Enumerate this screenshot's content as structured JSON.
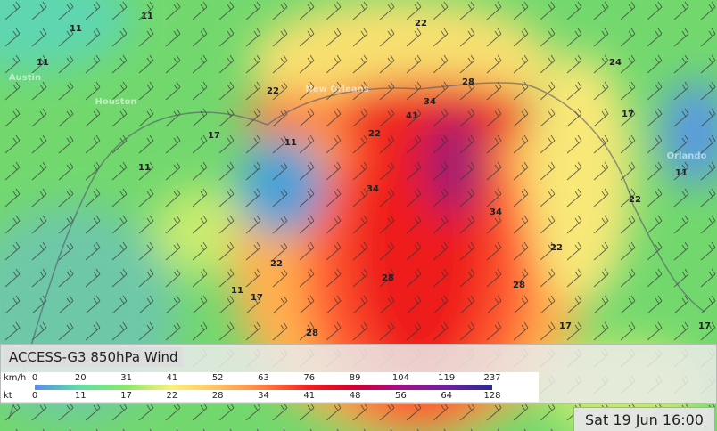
{
  "map": {
    "cities": [
      "Austin",
      "Houston",
      "New Orleans",
      "Orlando"
    ],
    "contour_labels": [
      11,
      11,
      11,
      22,
      22,
      28,
      34,
      41,
      22,
      11,
      17,
      17,
      34,
      34,
      28,
      22,
      17,
      11,
      28,
      22,
      17,
      24,
      11,
      22,
      17,
      11,
      28
    ]
  },
  "legend": {
    "title": "ACCESS-G3 850hPa Wind",
    "units": [
      "km/h",
      "kt"
    ],
    "kmh": [
      0,
      20,
      31,
      41,
      52,
      63,
      76,
      89,
      104,
      119,
      237
    ],
    "kt": [
      0,
      11,
      17,
      22,
      28,
      34,
      41,
      48,
      56,
      64,
      128
    ]
  },
  "timestamp": "Sat 19 Jun 16:00"
}
